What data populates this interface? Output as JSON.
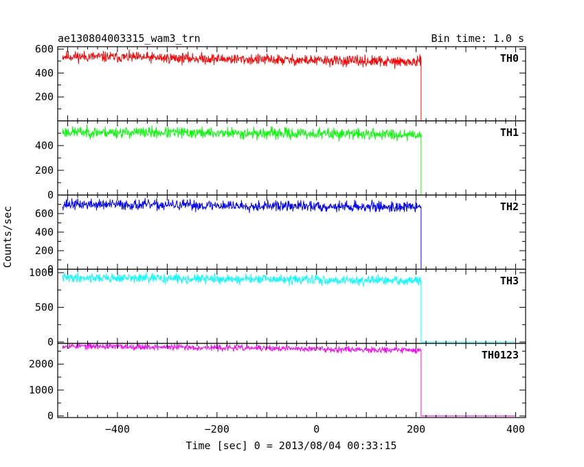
{
  "chart_data": {
    "type": "line",
    "title": "ae130804003315_wam3_trn",
    "bin_time_label": "Bin time: 1.0 s",
    "xlabel": "Time [sec] 0 = 2013/08/04 00:33:15",
    "ylabel": "Counts/sec",
    "xlim": [
      -520,
      420
    ],
    "x_ticks": [
      -400,
      -200,
      0,
      200,
      400
    ],
    "x_tick_labels": [
      "−400",
      "−200",
      "0",
      "200",
      "400"
    ],
    "drop_time": 210,
    "data_start": -510,
    "data_end": 400,
    "panels": [
      {
        "name": "TH0",
        "color": "#ff0000",
        "ylim": [
          0,
          620
        ],
        "ticks": [
          200,
          400,
          600
        ],
        "tick_labels": [
          "200",
          "400",
          "600"
        ],
        "level_start": 540,
        "level_end": 490,
        "noise": 22,
        "seed": 11
      },
      {
        "name": "TH1",
        "color": "#00ff00",
        "ylim": [
          0,
          600
        ],
        "ticks": [
          0,
          200,
          400
        ],
        "tick_labels": [
          "0",
          "200",
          "400"
        ],
        "level_start": 510,
        "level_end": 490,
        "noise": 22,
        "seed": 23
      },
      {
        "name": "TH2",
        "color": "#0000ff",
        "ylim": [
          0,
          800
        ],
        "ticks": [
          0,
          200,
          400,
          600
        ],
        "tick_labels": [
          "0",
          "200",
          "400",
          "600"
        ],
        "level_start": 700,
        "level_end": 670,
        "noise": 28,
        "seed": 37
      },
      {
        "name": "TH3",
        "color": "#00ffff",
        "ylim": [
          -20,
          1050
        ],
        "ticks": [
          0,
          500,
          1000
        ],
        "tick_labels": [
          "0",
          "500",
          "1000"
        ],
        "level_start": 930,
        "level_end": 880,
        "noise": 32,
        "seed": 41
      },
      {
        "name": "TH0123",
        "color": "#ff00ff",
        "ylim": [
          -60,
          2800
        ],
        "ticks": [
          0,
          1000,
          2000
        ],
        "tick_labels": [
          "0",
          "1000",
          "2000"
        ],
        "level_start": 2700,
        "level_end": 2540,
        "noise": 55,
        "seed": 53
      }
    ]
  }
}
